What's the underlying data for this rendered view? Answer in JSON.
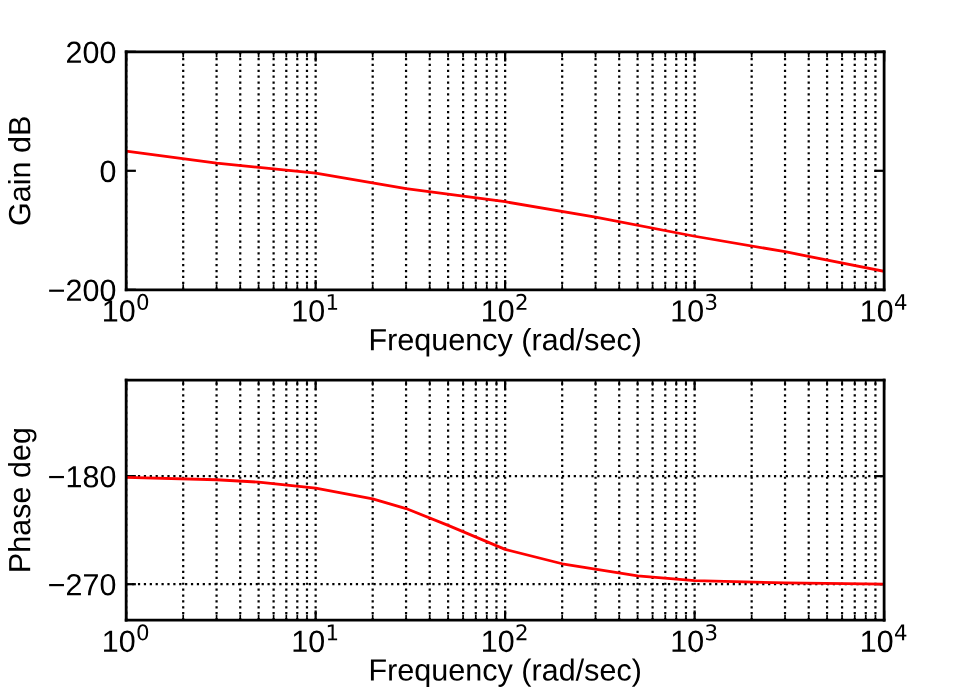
{
  "chart_data": [
    {
      "type": "line",
      "xlabel": "Frequency (rad/sec)",
      "ylabel": "Gain dB",
      "xlim": [
        1,
        10000
      ],
      "ylim": [
        -200,
        200
      ],
      "log": "x",
      "grid": "x",
      "xticks": [
        {
          "value": 1,
          "label": "10$^{0}$"
        },
        {
          "value": 10,
          "label": "10$^{1}$"
        },
        {
          "value": 100,
          "label": "10$^{2}$"
        },
        {
          "value": 1000,
          "label": "10$^{3}$"
        },
        {
          "value": 10000,
          "label": "10$^{4}$"
        }
      ],
      "yticks": [
        {
          "value": -200,
          "label": "−200"
        },
        0,
        200
      ],
      "series": [
        {
          "color": "#ff0000",
          "x": [
            1,
            3,
            10,
            30,
            100,
            300,
            1000,
            3000,
            10000
          ],
          "values": [
            33,
            13,
            -4,
            -30,
            -52,
            -78,
            -110,
            -136,
            -169
          ]
        }
      ]
    },
    {
      "type": "line",
      "xlabel": "Frequency (rad/sec)",
      "ylabel": "Phase deg",
      "xlim": [
        1,
        10000
      ],
      "ylim": [
        -300,
        -100
      ],
      "log": "x",
      "grid": true,
      "xticks": [
        {
          "value": 1,
          "label": "10$^{0}$"
        },
        {
          "value": 10,
          "label": "10$^{1}$"
        },
        {
          "value": 100,
          "label": "10$^{2}$"
        },
        {
          "value": 1000,
          "label": "10$^{3}$"
        },
        {
          "value": 10000,
          "label": "10$^{4}$"
        }
      ],
      "yticks": [
        {
          "value": -180,
          "label": "−180"
        },
        {
          "value": -270,
          "label": "−270"
        }
      ],
      "series": [
        {
          "color": "#ff0000",
          "x": [
            1,
            3,
            5,
            10,
            20,
            30,
            50,
            100,
            200,
            500,
            1000,
            3000,
            10000
          ],
          "values": [
            -181,
            -183,
            -185,
            -190,
            -199,
            -207,
            -221,
            -241,
            -253,
            -263,
            -267,
            -269,
            -270
          ]
        }
      ]
    }
  ]
}
